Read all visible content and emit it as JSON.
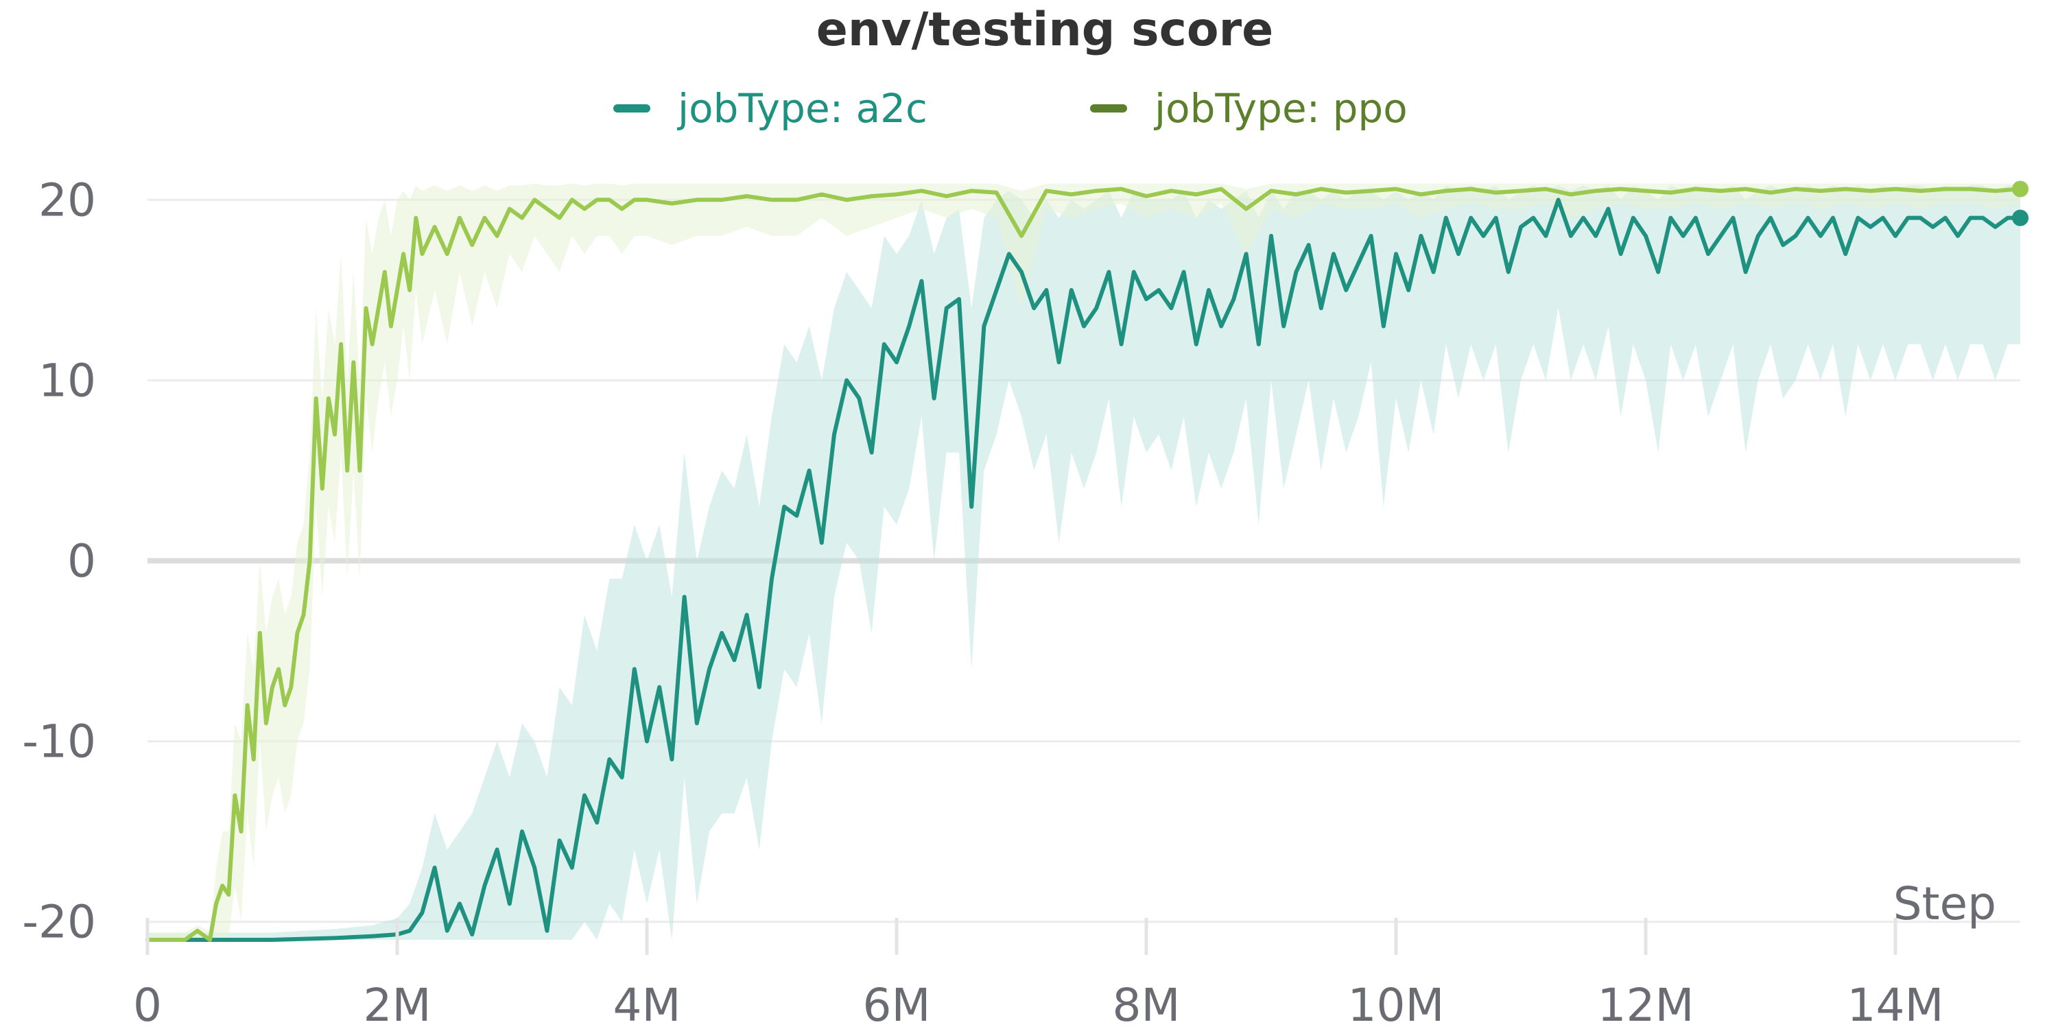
{
  "chart_data": {
    "type": "line",
    "title": "env/testing score",
    "xlabel": "Step",
    "ylabel": "",
    "xlim": [
      0,
      15000000
    ],
    "ylim": [
      -21,
      21
    ],
    "x_ticks": [
      {
        "value": 0,
        "label": "0"
      },
      {
        "value": 2000000,
        "label": "2M"
      },
      {
        "value": 4000000,
        "label": "4M"
      },
      {
        "value": 6000000,
        "label": "6M"
      },
      {
        "value": 8000000,
        "label": "8M"
      },
      {
        "value": 10000000,
        "label": "10M"
      },
      {
        "value": 12000000,
        "label": "12M"
      },
      {
        "value": 14000000,
        "label": "14M"
      }
    ],
    "y_ticks": [
      {
        "value": 20,
        "label": "20"
      },
      {
        "value": 10,
        "label": "10"
      },
      {
        "value": 0,
        "label": "0"
      },
      {
        "value": -10,
        "label": "-10"
      },
      {
        "value": -20,
        "label": "-20"
      }
    ],
    "grid": true,
    "legend": "top-center",
    "series": [
      {
        "name": "jobType: a2c",
        "color": "#1f9180",
        "band_color": "#bfe3e0",
        "x": [
          0,
          500000,
          1000000,
          1500000,
          1800000,
          2000000,
          2100000,
          2200000,
          2300000,
          2400000,
          2500000,
          2600000,
          2700000,
          2800000,
          2900000,
          3000000,
          3100000,
          3200000,
          3300000,
          3400000,
          3500000,
          3600000,
          3700000,
          3800000,
          3900000,
          4000000,
          4100000,
          4200000,
          4300000,
          4400000,
          4500000,
          4600000,
          4700000,
          4800000,
          4900000,
          5000000,
          5100000,
          5200000,
          5300000,
          5400000,
          5500000,
          5600000,
          5700000,
          5800000,
          5900000,
          6000000,
          6100000,
          6200000,
          6300000,
          6400000,
          6500000,
          6600000,
          6700000,
          6800000,
          6900000,
          7000000,
          7100000,
          7200000,
          7300000,
          7400000,
          7500000,
          7600000,
          7700000,
          7800000,
          7900000,
          8000000,
          8100000,
          8200000,
          8300000,
          8400000,
          8500000,
          8600000,
          8700000,
          8800000,
          8900000,
          9000000,
          9100000,
          9200000,
          9300000,
          9400000,
          9500000,
          9600000,
          9700000,
          9800000,
          9900000,
          10000000,
          10100000,
          10200000,
          10300000,
          10400000,
          10500000,
          10600000,
          10700000,
          10800000,
          10900000,
          11000000,
          11100000,
          11200000,
          11300000,
          11400000,
          11500000,
          11600000,
          11700000,
          11800000,
          11900000,
          12000000,
          12100000,
          12200000,
          12300000,
          12400000,
          12500000,
          12600000,
          12700000,
          12800000,
          12900000,
          13000000,
          13100000,
          13200000,
          13300000,
          13400000,
          13500000,
          13600000,
          13700000,
          13800000,
          13900000,
          14000000,
          14100000,
          14200000,
          14300000,
          14400000,
          14500000,
          14600000,
          14700000,
          14800000,
          14900000,
          15000000
        ],
        "values": [
          -21,
          -21,
          -21,
          -20.9,
          -20.8,
          -20.7,
          -20.5,
          -19.5,
          -17,
          -20.5,
          -19,
          -20.7,
          -18,
          -16,
          -19,
          -15,
          -17,
          -20.5,
          -15.5,
          -17,
          -13,
          -14.5,
          -11,
          -12,
          -6,
          -10,
          -7,
          -11,
          -2,
          -9,
          -6,
          -4,
          -5.5,
          -3,
          -7,
          -1,
          3,
          2.5,
          5,
          1,
          7,
          10,
          9,
          6,
          12,
          11,
          13,
          15.5,
          9,
          14,
          14.5,
          3,
          13,
          15,
          17,
          16,
          14,
          15,
          11,
          15,
          13,
          14,
          16,
          12,
          16,
          14.5,
          15,
          14,
          16,
          12,
          15,
          13,
          14.5,
          17,
          12,
          18,
          13,
          16,
          17.5,
          14,
          17,
          15,
          16.5,
          18,
          13,
          17,
          15,
          18,
          16,
          19,
          17,
          19,
          18,
          19,
          16,
          18.5,
          19,
          18,
          20,
          18,
          19,
          18,
          19.5,
          17,
          19,
          18,
          16,
          19,
          18,
          19,
          17,
          18,
          19,
          16,
          18,
          19,
          17.5,
          18,
          19,
          18,
          19,
          17,
          19,
          18.5,
          19,
          18,
          19,
          19,
          18.5,
          19,
          18,
          19,
          19,
          18.5,
          19,
          19
        ],
        "band_upper": [
          -20.6,
          -20.6,
          -20.6,
          -20.4,
          -20.2,
          -19.8,
          -19,
          -17,
          -14,
          -16,
          -15,
          -14,
          -12,
          -10,
          -12,
          -9,
          -10,
          -12,
          -7,
          -8,
          -3,
          -5,
          -1,
          -1,
          2,
          0,
          2,
          -2,
          6,
          0,
          3,
          5,
          4,
          7,
          3,
          8,
          12,
          11,
          13,
          10,
          14,
          16,
          15,
          14,
          18,
          17,
          18,
          20,
          17,
          19,
          19.5,
          14,
          19,
          20,
          20.5,
          20,
          19,
          20,
          19,
          20,
          19.5,
          20,
          20.5,
          19,
          20.5,
          20,
          20,
          20,
          20.5,
          19,
          20,
          19.5,
          20,
          20.5,
          19,
          20.5,
          19.5,
          20.5,
          20.5,
          20,
          20.5,
          20,
          20.5,
          20.5,
          20,
          20.5,
          20,
          20.5,
          20,
          20.8,
          20.5,
          20.8,
          20.5,
          20.8,
          20,
          20.5,
          20.8,
          20.5,
          20.8,
          20.5,
          20.8,
          20.5,
          20.8,
          20,
          20.8,
          20.5,
          20,
          20.8,
          20.5,
          20.8,
          20.5,
          20.5,
          20.8,
          20,
          20.5,
          20.8,
          20.5,
          20.5,
          20.8,
          20.5,
          20.8,
          20.5,
          20.8,
          20.5,
          20.8,
          20.5,
          20.8,
          20.8,
          20.5,
          20.8,
          20.5,
          20.8,
          20.8,
          20.5,
          20.8,
          20.8
        ],
        "band_lower": [
          -21,
          -21,
          -21,
          -21,
          -21,
          -21,
          -21,
          -21,
          -21,
          -21,
          -21,
          -21,
          -21,
          -21,
          -21,
          -21,
          -21,
          -21,
          -21,
          -21,
          -20,
          -21,
          -19,
          -20,
          -16,
          -19,
          -16,
          -21,
          -12,
          -19,
          -15,
          -14,
          -14,
          -12,
          -16,
          -10,
          -6,
          -7,
          -4,
          -9,
          -2,
          1,
          0,
          -4,
          3,
          2,
          4,
          8,
          0,
          6,
          6,
          -6,
          5,
          7,
          10,
          8,
          5,
          7,
          1,
          6,
          4,
          6,
          9,
          3,
          8,
          6,
          7,
          5,
          8,
          3,
          6,
          4,
          6,
          9,
          2,
          10,
          4,
          7,
          10,
          5,
          9,
          6,
          8,
          11,
          3,
          9,
          6,
          10,
          7,
          12,
          9,
          12,
          10,
          12,
          6,
          10,
          12,
          10,
          14,
          10,
          12,
          10,
          13,
          8,
          12,
          10,
          6,
          12,
          10,
          12,
          8,
          10,
          12,
          6,
          10,
          12,
          9,
          10,
          12,
          10,
          12,
          8,
          12,
          10,
          12,
          10,
          12,
          12,
          10,
          12,
          10,
          12,
          12,
          10,
          12,
          12
        ]
      },
      {
        "name": "jobType: ppo",
        "color": "#9bc94f",
        "band_color": "#e7f2d6",
        "x": [
          0,
          300000,
          400000,
          500000,
          550000,
          600000,
          650000,
          700000,
          750000,
          800000,
          850000,
          900000,
          950000,
          1000000,
          1050000,
          1100000,
          1150000,
          1200000,
          1250000,
          1300000,
          1350000,
          1400000,
          1450000,
          1500000,
          1550000,
          1600000,
          1650000,
          1700000,
          1750000,
          1800000,
          1850000,
          1900000,
          1950000,
          2000000,
          2050000,
          2100000,
          2150000,
          2200000,
          2300000,
          2400000,
          2500000,
          2600000,
          2700000,
          2800000,
          2900000,
          3000000,
          3100000,
          3200000,
          3300000,
          3400000,
          3500000,
          3600000,
          3700000,
          3800000,
          3900000,
          4000000,
          4200000,
          4400000,
          4600000,
          4800000,
          5000000,
          5200000,
          5400000,
          5600000,
          5800000,
          6000000,
          6200000,
          6400000,
          6600000,
          6800000,
          7000000,
          7200000,
          7400000,
          7600000,
          7800000,
          8000000,
          8200000,
          8400000,
          8600000,
          8800000,
          9000000,
          9200000,
          9400000,
          9600000,
          9800000,
          10000000,
          10200000,
          10400000,
          10600000,
          10800000,
          11000000,
          11200000,
          11400000,
          11600000,
          11800000,
          12000000,
          12200000,
          12400000,
          12600000,
          12800000,
          13000000,
          13200000,
          13400000,
          13600000,
          13800000,
          14000000,
          14200000,
          14400000,
          14600000,
          14800000,
          15000000
        ],
        "values": [
          -21,
          -21,
          -20.5,
          -21,
          -19,
          -18,
          -18.5,
          -13,
          -15,
          -8,
          -11,
          -4,
          -9,
          -7,
          -6,
          -8,
          -7,
          -4,
          -3,
          0,
          9,
          4,
          9,
          7,
          12,
          5,
          11,
          5,
          14,
          12,
          14,
          16,
          13,
          15,
          17,
          15,
          19,
          17,
          18.5,
          17,
          19,
          17.5,
          19,
          18,
          19.5,
          19,
          20,
          19.5,
          19,
          20,
          19.5,
          20,
          20,
          19.5,
          20,
          20,
          19.8,
          20,
          20,
          20.2,
          20,
          20,
          20.3,
          20,
          20.2,
          20.3,
          20.5,
          20.2,
          20.5,
          20.4,
          18,
          20.5,
          20.3,
          20.5,
          20.6,
          20.2,
          20.5,
          20.3,
          20.6,
          19.5,
          20.5,
          20.3,
          20.6,
          20.4,
          20.5,
          20.6,
          20.3,
          20.5,
          20.6,
          20.4,
          20.5,
          20.6,
          20.3,
          20.5,
          20.6,
          20.5,
          20.4,
          20.6,
          20.5,
          20.6,
          20.4,
          20.6,
          20.5,
          20.6,
          20.5,
          20.6,
          20.5,
          20.6,
          20.6,
          20.5,
          20.6
        ],
        "band_upper": [
          -20.6,
          -20.6,
          -20.2,
          -20.5,
          -17,
          -15,
          -15,
          -9,
          -10,
          -4,
          -6,
          0,
          -4,
          -2,
          -1,
          -3,
          -2,
          1,
          2,
          6,
          14,
          9,
          14,
          12,
          17,
          10,
          16,
          10,
          19,
          17,
          19,
          20,
          18,
          20,
          20.5,
          20,
          20.8,
          20.5,
          20.8,
          20.5,
          20.8,
          20.5,
          20.8,
          20.5,
          20.8,
          20.8,
          20.9,
          20.8,
          20.8,
          20.9,
          20.8,
          20.9,
          20.9,
          20.8,
          20.9,
          20.9,
          20.9,
          20.9,
          20.9,
          20.9,
          20.9,
          20.9,
          20.9,
          20.9,
          20.9,
          20.9,
          20.9,
          20.9,
          20.9,
          20.9,
          20.5,
          20.9,
          20.9,
          20.9,
          20.9,
          20.9,
          20.9,
          20.9,
          20.9,
          20.6,
          20.9,
          20.9,
          20.9,
          20.9,
          20.9,
          20.9,
          20.9,
          20.9,
          20.9,
          20.9,
          20.9,
          20.9,
          20.9,
          20.9,
          20.9,
          20.9,
          20.9,
          20.9,
          20.9,
          20.9,
          20.9,
          20.9,
          20.9,
          20.9,
          20.9,
          20.9,
          20.9,
          20.9,
          20.9,
          20.9,
          20.9
        ],
        "band_lower": [
          -21,
          -21,
          -21,
          -21,
          -21,
          -21,
          -21,
          -18,
          -20,
          -14,
          -17,
          -10,
          -15,
          -13,
          -12,
          -14,
          -13,
          -10,
          -9,
          -6,
          3,
          -2,
          3,
          1,
          6,
          -1,
          5,
          -1,
          9,
          6,
          9,
          11,
          8,
          10,
          13,
          10,
          15,
          12,
          15,
          12,
          16,
          13,
          16,
          14,
          17,
          16,
          18,
          17,
          16,
          18,
          17,
          18,
          18,
          17,
          18,
          18,
          17.5,
          18,
          18,
          18.5,
          18,
          18,
          19,
          18,
          18.5,
          19,
          19.5,
          19,
          19.5,
          19,
          14,
          19.5,
          19,
          19.5,
          19.8,
          19,
          19.5,
          19,
          19.8,
          17,
          19.5,
          19,
          19.8,
          19.5,
          19.5,
          19.8,
          19,
          19.5,
          19.8,
          19.5,
          19.5,
          19.8,
          19,
          19.5,
          19.8,
          19.5,
          19.5,
          19.8,
          19.5,
          19.8,
          19.5,
          19.8,
          19.5,
          19.8,
          19.5,
          19.8,
          19.5,
          19.8,
          19.8,
          19.5,
          19.8
        ]
      }
    ]
  }
}
